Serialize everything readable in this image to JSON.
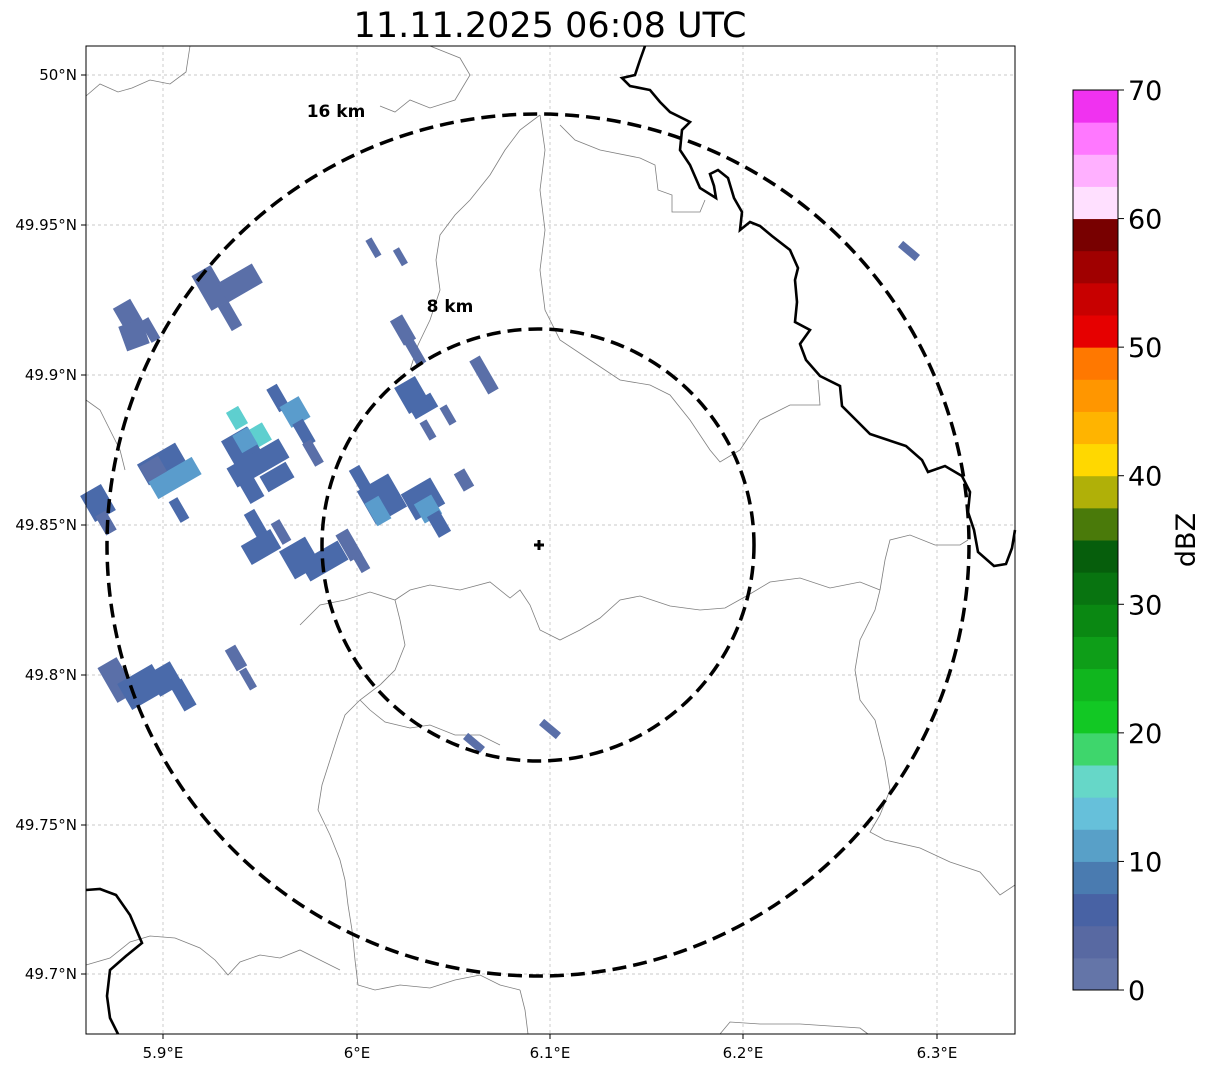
{
  "title": "11.11.2025 06:08 UTC",
  "x_ticks": [
    "5.9°E",
    "6°E",
    "6.1°E",
    "6.2°E",
    "6.3°E"
  ],
  "y_ticks": [
    "50°N",
    "49.95°N",
    "49.9°N",
    "49.85°N",
    "49.8°N",
    "49.75°N",
    "49.7°N"
  ],
  "rings": [
    {
      "label": "16 km",
      "radius_km": 16
    },
    {
      "label": "8 km",
      "radius_km": 8
    }
  ],
  "radar_site": {
    "symbol": "+"
  },
  "colorbar": {
    "label": "dBZ",
    "ticks": [
      "0",
      "10",
      "20",
      "30",
      "40",
      "50",
      "60",
      "70"
    ],
    "colors": [
      "#6475a8",
      "#5869a2",
      "#4862a4",
      "#4a7bb0",
      "#58a0c8",
      "#66c0da",
      "#66d7c8",
      "#3ed66c",
      "#12c824",
      "#10b61e",
      "#0e9e18",
      "#0a8812",
      "#087410",
      "#065e0c",
      "#4a7a0a",
      "#b0b008",
      "#ffd800",
      "#ffb400",
      "#ff9600",
      "#ff7800",
      "#e60000",
      "#c80000",
      "#a00000",
      "#780000",
      "#ffe0ff",
      "#ffb0ff",
      "#ff78ff",
      "#f032f0"
    ]
  },
  "reflectivity_colors": {
    "low": "#5a6fa8",
    "mid": "#4a6aaa",
    "light_blue": "#5a9ccc",
    "cyan": "#5ecfcf"
  }
}
